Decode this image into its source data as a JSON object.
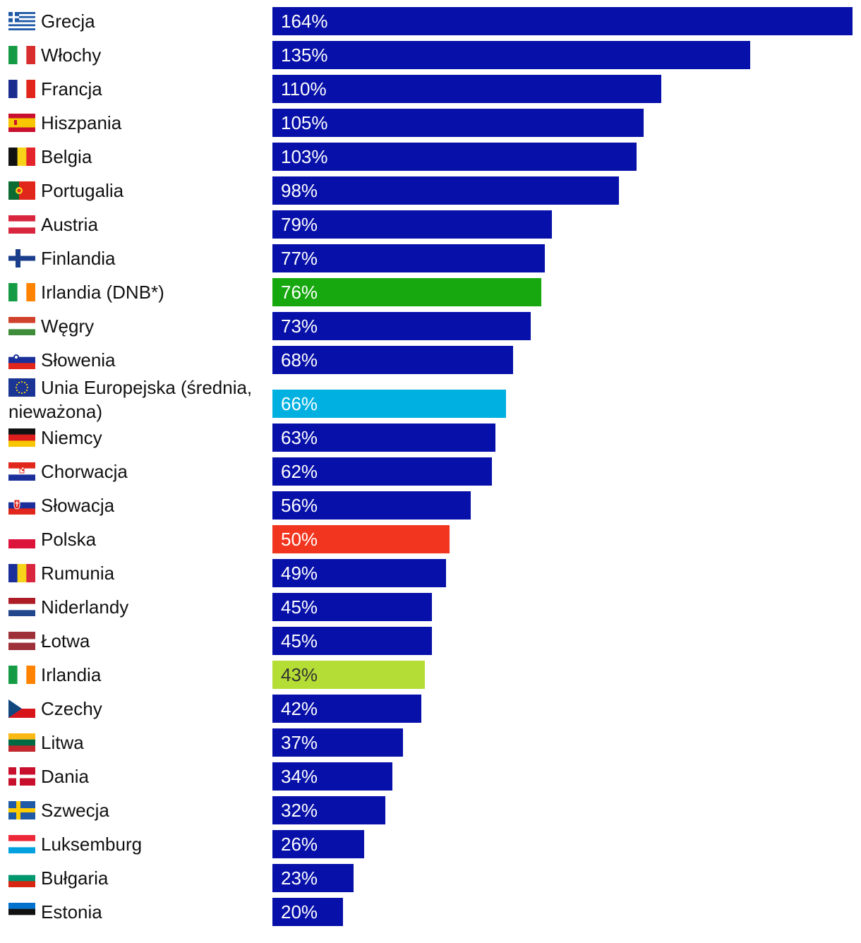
{
  "chart_data": {
    "type": "bar",
    "orientation": "horizontal",
    "title": "",
    "xlabel": "",
    "ylabel": "",
    "xlim": [
      0,
      164
    ],
    "value_suffix": "%",
    "categories": [
      "Grecja",
      "Włochy",
      "Francja",
      "Hiszpania",
      "Belgia",
      "Portugalia",
      "Austria",
      "Finlandia",
      "Irlandia (DNB*)",
      "Węgry",
      "Słowenia",
      "Unia Europejska (średnia, nieważona)",
      "Niemcy",
      "Chorwacja",
      "Słowacja",
      "Polska",
      "Rumunia",
      "Niderlandy",
      "Łotwa",
      "Irlandia",
      "Czechy",
      "Litwa",
      "Dania",
      "Szwecja",
      "Luksemburg",
      "Bułgaria",
      "Estonia"
    ],
    "values": [
      164,
      135,
      110,
      105,
      103,
      98,
      79,
      77,
      76,
      73,
      68,
      66,
      63,
      62,
      56,
      50,
      49,
      45,
      45,
      43,
      42,
      37,
      34,
      32,
      26,
      23,
      20
    ],
    "value_labels": [
      "164%",
      "135%",
      "110%",
      "105%",
      "103%",
      "98%",
      "79%",
      "77%",
      "76%",
      "73%",
      "68%",
      "66%",
      "63%",
      "62%",
      "56%",
      "50%",
      "49%",
      "45%",
      "45%",
      "43%",
      "42%",
      "37%",
      "34%",
      "32%",
      "26%",
      "23%",
      "20%"
    ],
    "bar_colors": [
      "#0710a8",
      "#0710a8",
      "#0710a8",
      "#0710a8",
      "#0710a8",
      "#0710a8",
      "#0710a8",
      "#0710a8",
      "#16a80e",
      "#0710a8",
      "#0710a8",
      "#00b0e0",
      "#0710a8",
      "#0710a8",
      "#0710a8",
      "#f2351e",
      "#0710a8",
      "#0710a8",
      "#0710a8",
      "#b4dd35",
      "#0710a8",
      "#0710a8",
      "#0710a8",
      "#0710a8",
      "#0710a8",
      "#0710a8",
      "#0710a8"
    ],
    "flag_icons": [
      "greece-flag-icon",
      "italy-flag-icon",
      "france-flag-icon",
      "spain-flag-icon",
      "belgium-flag-icon",
      "portugal-flag-icon",
      "austria-flag-icon",
      "finland-flag-icon",
      "ireland-flag-icon",
      "hungary-flag-icon",
      "slovenia-flag-icon",
      "eu-flag-icon",
      "germany-flag-icon",
      "croatia-flag-icon",
      "slovakia-flag-icon",
      "poland-flag-icon",
      "romania-flag-icon",
      "netherlands-flag-icon",
      "latvia-flag-icon",
      "ireland-flag-icon",
      "czechia-flag-icon",
      "lithuania-flag-icon",
      "denmark-flag-icon",
      "sweden-flag-icon",
      "luxembourg-flag-icon",
      "bulgaria-flag-icon",
      "estonia-flag-icon"
    ]
  }
}
